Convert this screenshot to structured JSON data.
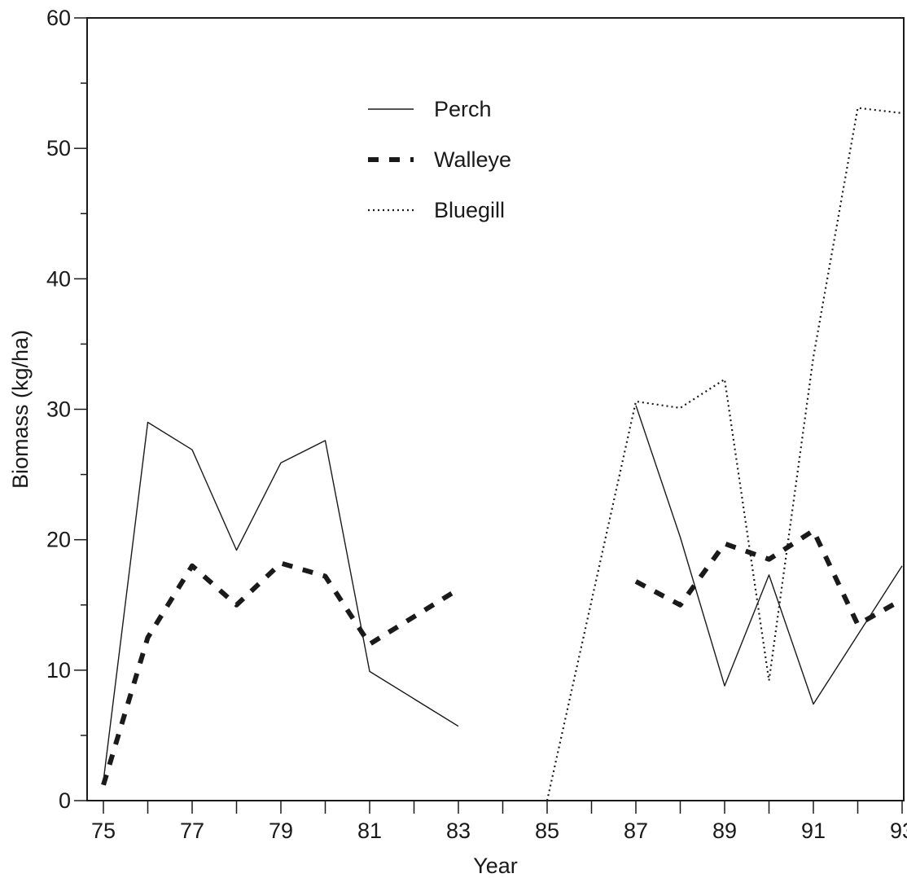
{
  "chart_data": {
    "type": "line",
    "title": "",
    "xlabel": "Year",
    "ylabel": "Biomass (kg/ha)",
    "xlim": [
      75,
      93
    ],
    "ylim": [
      0,
      60
    ],
    "x_major_ticks": [
      75,
      77,
      79,
      81,
      83,
      85,
      87,
      89,
      91,
      93
    ],
    "y_major_ticks": [
      0,
      10,
      20,
      30,
      40,
      50,
      60
    ],
    "grid": false,
    "legend_position": "top-center",
    "series": [
      {
        "name": "Perch",
        "style": "solid",
        "points": [
          [
            75,
            1.5
          ],
          [
            76,
            29.0
          ],
          [
            77,
            26.9
          ],
          [
            78,
            19.2
          ],
          [
            79,
            25.9
          ],
          [
            80,
            27.6
          ],
          [
            81,
            9.9
          ],
          [
            83,
            5.7
          ],
          [
            87,
            30.3
          ],
          [
            88,
            20.2
          ],
          [
            89,
            8.8
          ],
          [
            90,
            17.3
          ],
          [
            91,
            7.4
          ],
          [
            93,
            18.0
          ]
        ]
      },
      {
        "name": "Walleye",
        "style": "dashed",
        "points": [
          [
            75,
            1.2
          ],
          [
            76,
            12.5
          ],
          [
            77,
            18.0
          ],
          [
            78,
            15.0
          ],
          [
            79,
            18.2
          ],
          [
            80,
            17.2
          ],
          [
            81,
            12.0
          ],
          [
            83,
            16.2
          ],
          [
            87,
            16.8
          ],
          [
            88,
            15.0
          ],
          [
            89,
            19.7
          ],
          [
            90,
            18.5
          ],
          [
            91,
            20.7
          ],
          [
            92,
            13.5
          ],
          [
            93,
            15.4
          ]
        ]
      },
      {
        "name": "Bluegill",
        "style": "dotted",
        "points": [
          [
            85,
            0.0
          ],
          [
            87,
            30.6
          ],
          [
            88,
            30.1
          ],
          [
            89,
            32.3
          ],
          [
            90,
            9.2
          ],
          [
            91,
            34.0
          ],
          [
            92,
            53.1
          ],
          [
            93,
            52.7
          ]
        ]
      }
    ]
  }
}
